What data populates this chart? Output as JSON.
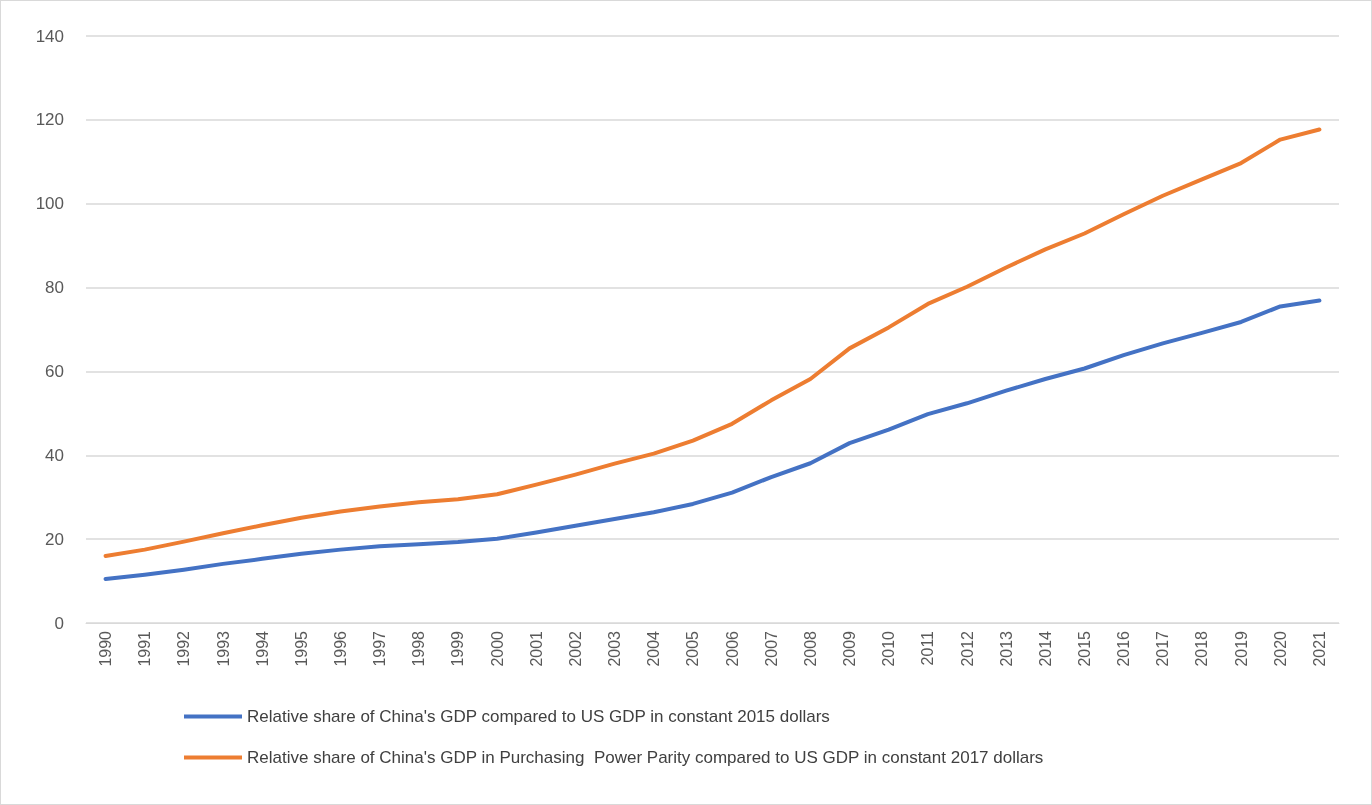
{
  "chart_data": {
    "type": "line",
    "categories": [
      "1990",
      "1991",
      "1992",
      "1993",
      "1994",
      "1995",
      "1996",
      "1997",
      "1998",
      "1999",
      "2000",
      "2001",
      "2002",
      "2003",
      "2004",
      "2005",
      "2006",
      "2007",
      "2008",
      "2009",
      "2010",
      "2011",
      "2012",
      "2013",
      "2014",
      "2015",
      "2016",
      "2017",
      "2018",
      "2019",
      "2020",
      "2021"
    ],
    "series": [
      {
        "name": "Relative share of China's GDP compared to US GDP in constant 2015 dollars",
        "color": "#4472c4",
        "values": [
          10.5,
          11.5,
          12.7,
          14.1,
          15.3,
          16.5,
          17.5,
          18.3,
          18.8,
          19.3,
          20.1,
          21.6,
          23.2,
          24.8,
          26.4,
          28.4,
          31.1,
          34.8,
          38.1,
          42.9,
          46.1,
          49.8,
          52.4,
          55.4,
          58.2,
          60.7,
          63.9,
          66.7,
          69.2,
          71.8,
          75.5,
          76.9
        ]
      },
      {
        "name": "Relative share of China's GDP in Purchasing  Power Parity compared to US GDP in constant 2017 dollars",
        "color": "#ed7d31",
        "values": [
          16.0,
          17.5,
          19.4,
          21.4,
          23.3,
          25.1,
          26.6,
          27.8,
          28.8,
          29.5,
          30.7,
          33.0,
          35.4,
          38.0,
          40.4,
          43.5,
          47.5,
          53.1,
          58.2,
          65.5,
          70.5,
          76.1,
          80.2,
          84.8,
          89.1,
          92.9,
          97.5,
          101.9,
          105.8,
          109.7,
          115.3,
          117.7
        ]
      }
    ],
    "ylim": [
      0,
      140
    ],
    "yticks": [
      0,
      20,
      40,
      60,
      80,
      100,
      120,
      140
    ],
    "grid": "y",
    "legend": "bottom",
    "marker": "none",
    "line_style": "solid"
  }
}
